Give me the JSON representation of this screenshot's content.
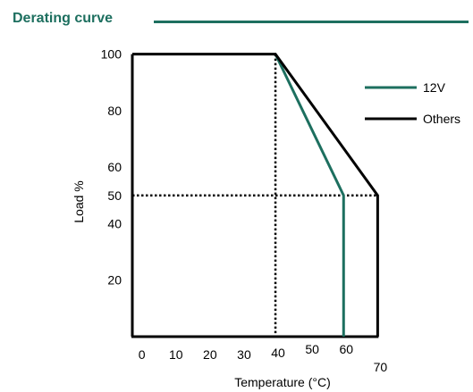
{
  "header": {
    "title": "Derating curve"
  },
  "colors": {
    "header": "#1d6f5f",
    "series_12v": "#1d6f5f",
    "series_others": "#000000",
    "highlight_tick": "#d0021b"
  },
  "chart_data": {
    "type": "line",
    "title": "Derating curve",
    "xlabel": "Temperature (°C)",
    "ylabel": "Load %",
    "xlim": [
      -2,
      72
    ],
    "ylim": [
      0,
      110
    ],
    "x_ticks": [
      {
        "value": 0,
        "label": "0"
      },
      {
        "value": 10,
        "label": "10"
      },
      {
        "value": 20,
        "label": "20"
      },
      {
        "value": 30,
        "label": "30"
      },
      {
        "value": 40,
        "label": "40"
      },
      {
        "value": 50,
        "label": "50"
      },
      {
        "value": 60,
        "label": "60"
      },
      {
        "value": 70,
        "label": "70"
      }
    ],
    "y_ticks": [
      {
        "value": 100,
        "label": "100"
      },
      {
        "value": 80,
        "label": "80"
      },
      {
        "value": 60,
        "label": "60"
      },
      {
        "value": 50,
        "label": "50",
        "highlight": true
      },
      {
        "value": 40,
        "label": "40"
      },
      {
        "value": 20,
        "label": "20"
      }
    ],
    "series": [
      {
        "name": "12V",
        "color": "#1d6f5f",
        "x": [
          40,
          60,
          60
        ],
        "y": [
          100,
          50,
          0
        ]
      },
      {
        "name": "Others",
        "color": "#000000",
        "x": [
          -2,
          40,
          70,
          70
        ],
        "y": [
          100,
          100,
          50,
          0
        ]
      }
    ],
    "reference_lines": [
      {
        "type": "vertical",
        "x": 40,
        "y_from": 0,
        "y_to": 100,
        "style": "dotted"
      },
      {
        "type": "horizontal",
        "y": 50,
        "x_from": -2,
        "x_to": 70,
        "style": "dotted"
      }
    ],
    "legend": {
      "position": "top-right"
    },
    "grid": false
  }
}
